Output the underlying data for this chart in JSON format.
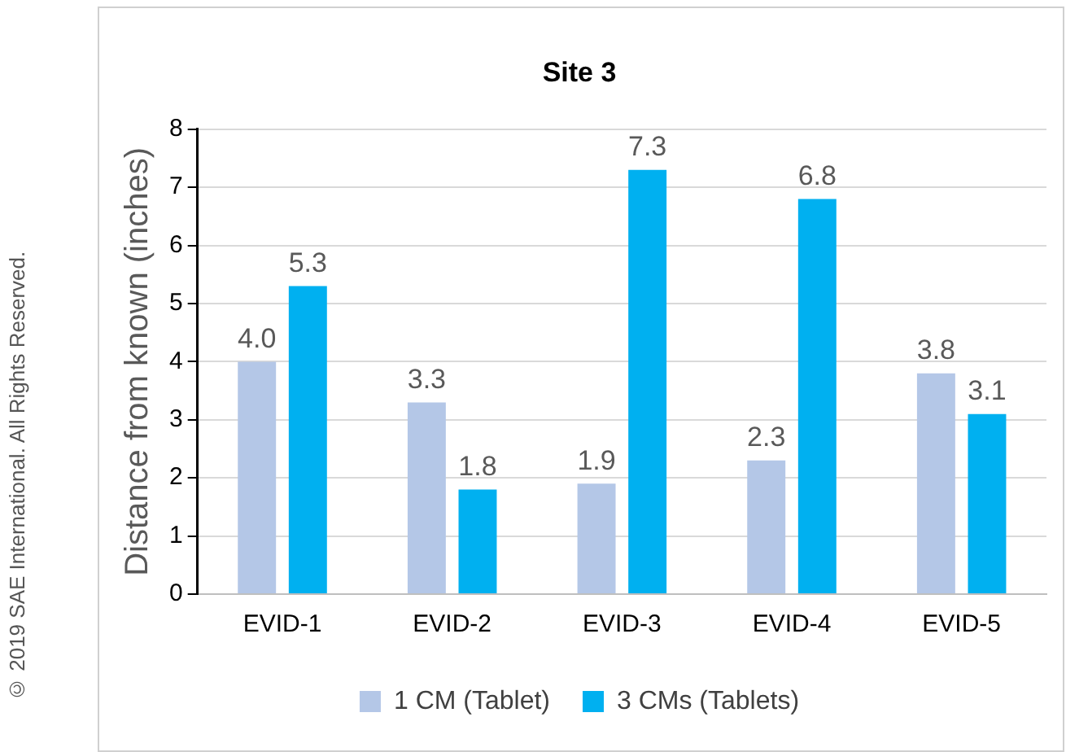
{
  "chart_data": {
    "type": "bar",
    "title": "Site 3",
    "ylabel": "Distance from known (inches)",
    "categories": [
      "EVID-1",
      "EVID-2",
      "EVID-3",
      "EVID-4",
      "EVID-5"
    ],
    "series": [
      {
        "name": "1 CM (Tablet)",
        "color": "#b4c7e7",
        "values": [
          4.0,
          3.3,
          1.9,
          2.3,
          3.8
        ],
        "value_labels": [
          "4.0",
          "3.3",
          "1.9",
          "2.3",
          "3.8"
        ]
      },
      {
        "name": "3 CMs (Tablets)",
        "color": "#00b0f0",
        "values": [
          5.3,
          1.8,
          7.3,
          6.8,
          3.1
        ],
        "value_labels": [
          "5.3",
          "1.8",
          "7.3",
          "6.8",
          "3.1"
        ]
      }
    ],
    "ylim": [
      0,
      8
    ],
    "yticks": [
      0,
      1,
      2,
      3,
      4,
      5,
      6,
      7,
      8
    ],
    "grid": "y",
    "legend": "bottom",
    "annotations": [
      "© 2019 SAE International. All Rights Reserved."
    ]
  }
}
